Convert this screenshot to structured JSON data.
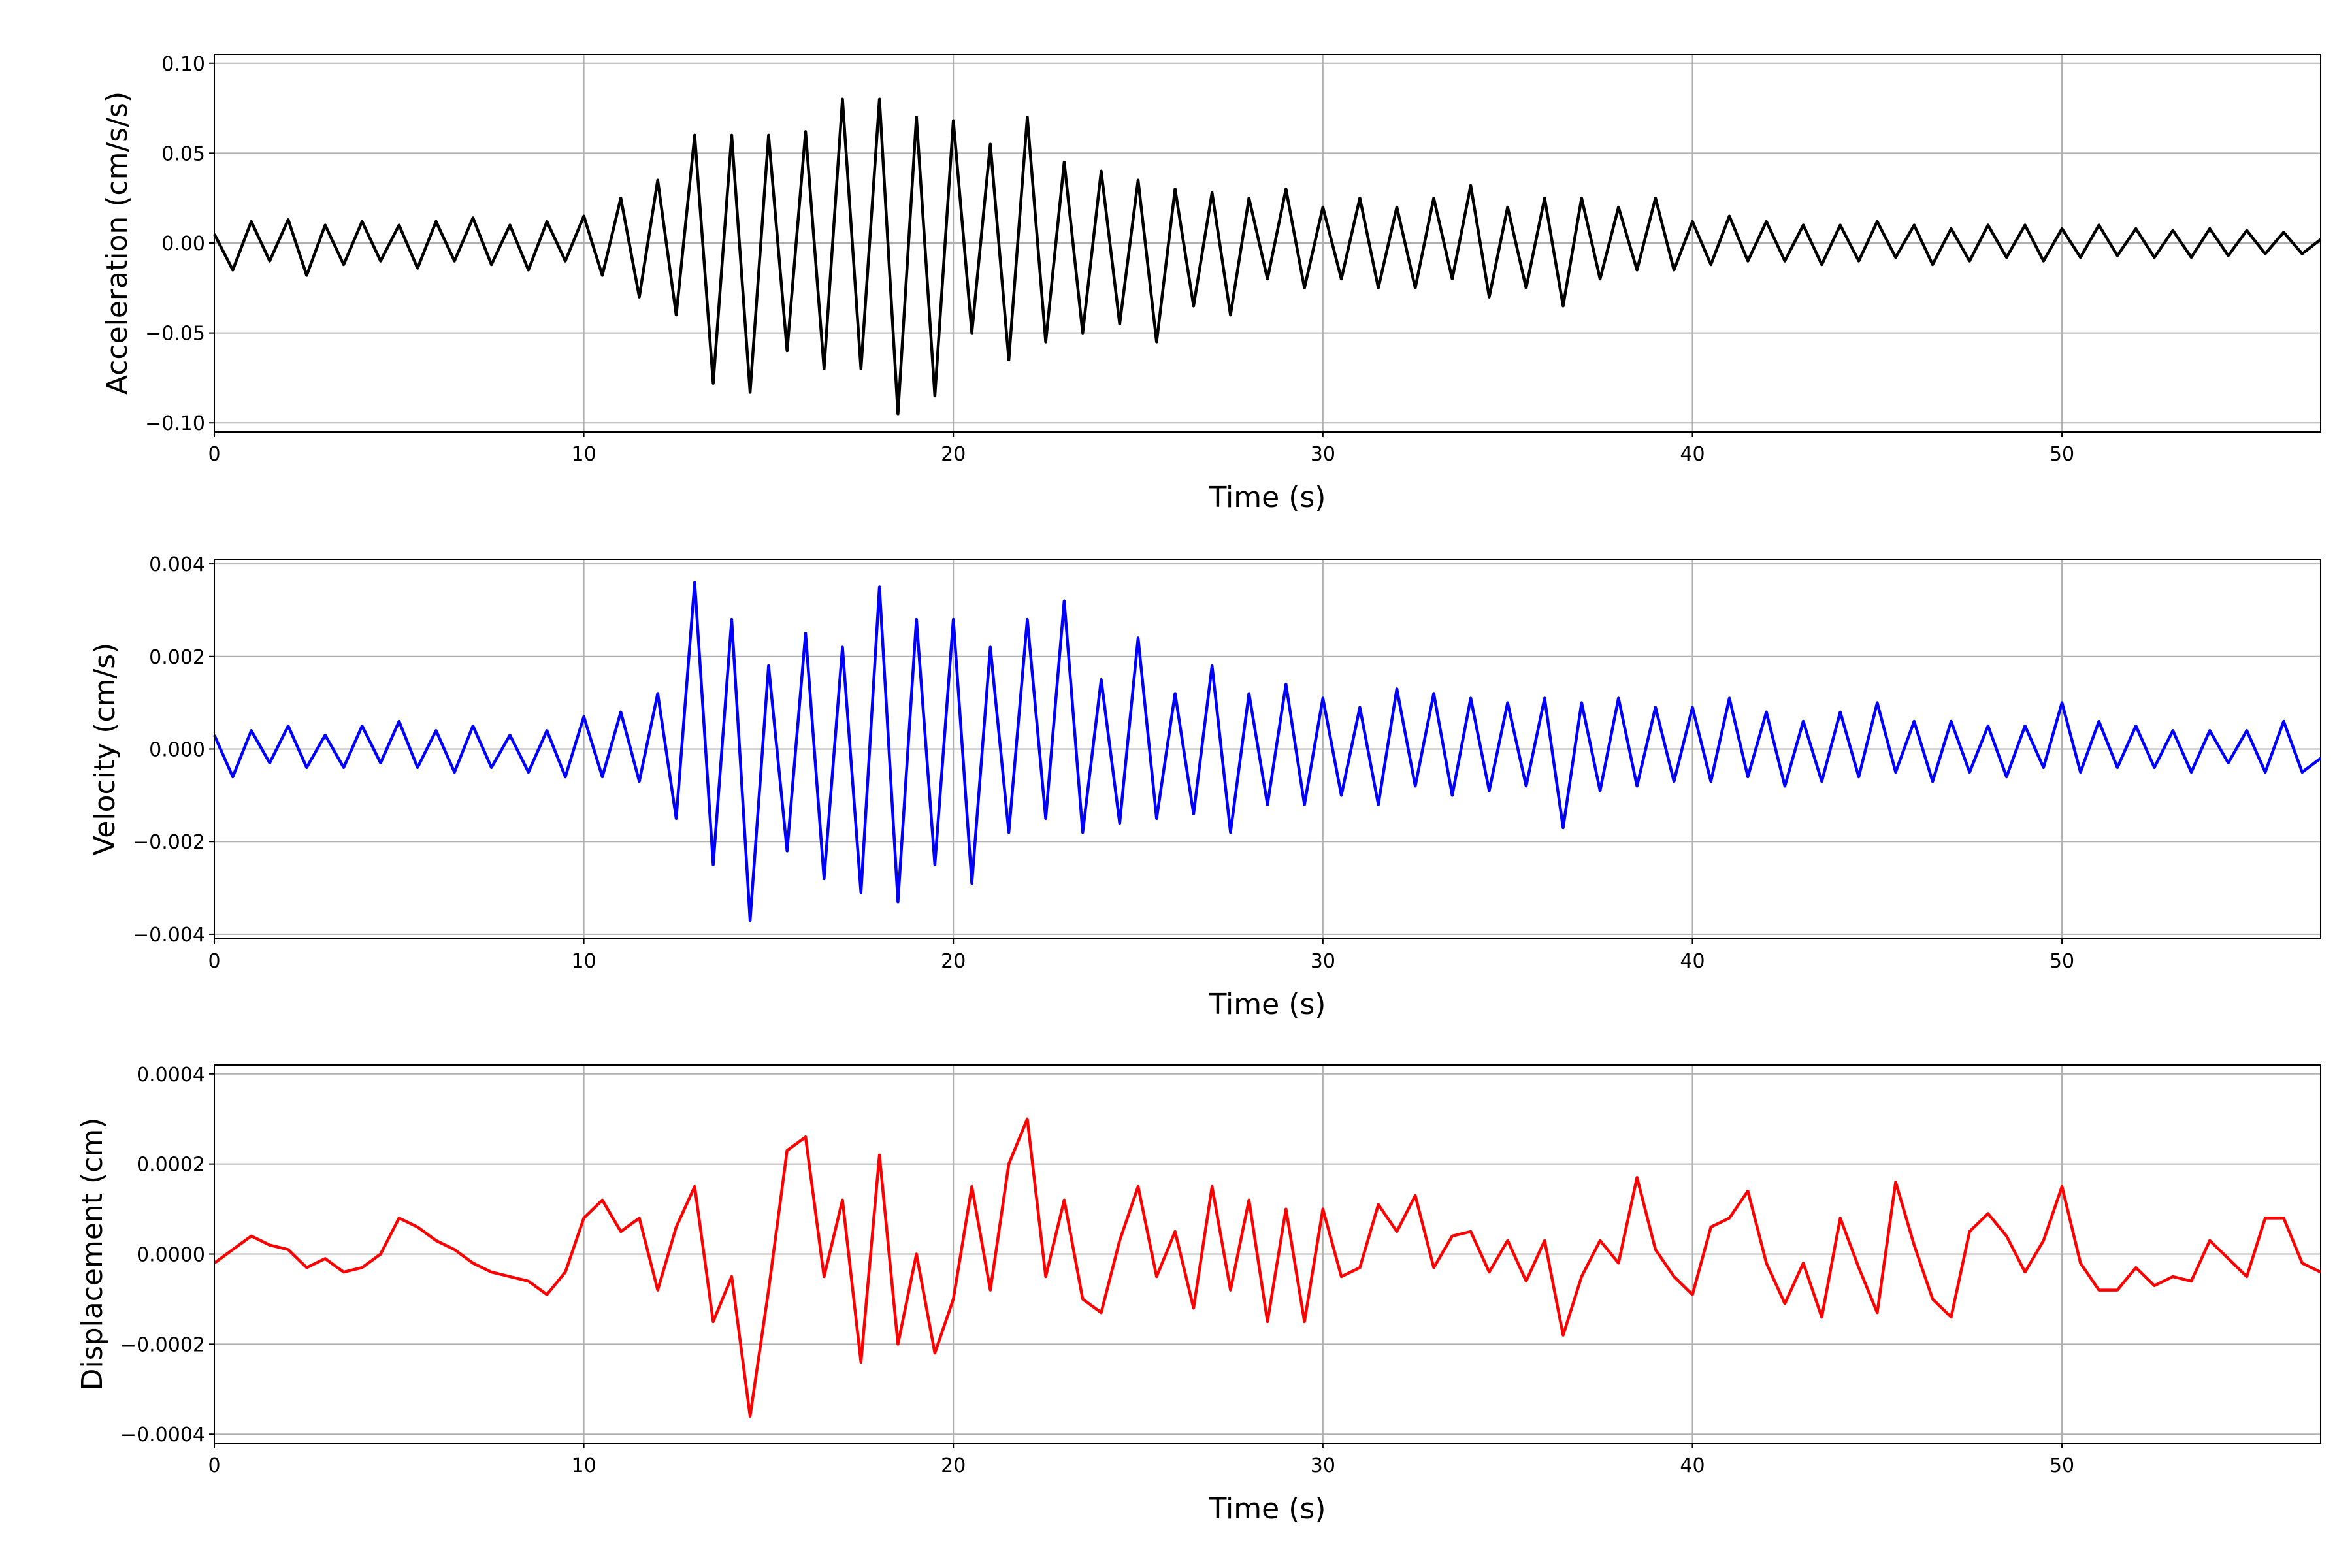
{
  "chart_data": [
    {
      "type": "line",
      "xlabel": "Time (s)",
      "ylabel": "Acceleration (cm/s/s)",
      "color": "#000000",
      "grid": true,
      "xlim": [
        0,
        57
      ],
      "xticks": [
        0,
        10,
        20,
        30,
        40,
        50
      ],
      "ylim": [
        -0.105,
        0.105
      ],
      "yticks": [
        {
          "value": -0.1,
          "label": "−0.10"
        },
        {
          "value": -0.05,
          "label": "−0.05"
        },
        {
          "value": 0,
          "label": "0.00"
        },
        {
          "value": 0.05,
          "label": "0.05"
        },
        {
          "value": 0.1,
          "label": "0.10"
        }
      ],
      "x": [
        0,
        0.5,
        1,
        1.5,
        2,
        2.5,
        3,
        3.5,
        4,
        4.5,
        5,
        5.5,
        6,
        6.5,
        7,
        7.5,
        8,
        8.5,
        9,
        9.5,
        10,
        10.5,
        11,
        11.5,
        12,
        12.5,
        13,
        13.5,
        14,
        14.5,
        15,
        15.5,
        16,
        16.5,
        17,
        17.5,
        18,
        18.5,
        19,
        19.5,
        20,
        20.5,
        21,
        21.5,
        22,
        22.5,
        23,
        23.5,
        24,
        24.5,
        25,
        25.5,
        26,
        26.5,
        27,
        27.5,
        28,
        28.5,
        29,
        29.5,
        30,
        30.5,
        31,
        31.5,
        32,
        32.5,
        33,
        33.5,
        34,
        34.5,
        35,
        35.5,
        36,
        36.5,
        37,
        37.5,
        38,
        38.5,
        39,
        39.5,
        40,
        40.5,
        41,
        41.5,
        42,
        42.5,
        43,
        43.5,
        44,
        44.5,
        45,
        45.5,
        46,
        46.5,
        47,
        47.5,
        48,
        48.5,
        49,
        49.5,
        50,
        50.5,
        51,
        51.5,
        52,
        52.5,
        53,
        53.5,
        54,
        54.5,
        55,
        55.5,
        56,
        56.5,
        57
      ],
      "values": [
        0.005,
        -0.015,
        0.012,
        -0.01,
        0.013,
        -0.018,
        0.01,
        -0.012,
        0.012,
        -0.01,
        0.01,
        -0.014,
        0.012,
        -0.01,
        0.014,
        -0.012,
        0.01,
        -0.015,
        0.012,
        -0.01,
        0.015,
        -0.018,
        0.025,
        -0.03,
        0.035,
        -0.04,
        0.06,
        -0.078,
        0.06,
        -0.083,
        0.06,
        -0.06,
        0.062,
        -0.07,
        0.08,
        -0.07,
        0.08,
        -0.095,
        0.07,
        -0.085,
        0.068,
        -0.05,
        0.055,
        -0.065,
        0.07,
        -0.055,
        0.045,
        -0.05,
        0.04,
        -0.045,
        0.035,
        -0.055,
        0.03,
        -0.035,
        0.028,
        -0.04,
        0.025,
        -0.02,
        0.03,
        -0.025,
        0.02,
        -0.02,
        0.025,
        -0.025,
        0.02,
        -0.025,
        0.025,
        -0.02,
        0.032,
        -0.03,
        0.02,
        -0.025,
        0.025,
        -0.035,
        0.025,
        -0.02,
        0.02,
        -0.015,
        0.025,
        -0.015,
        0.012,
        -0.012,
        0.015,
        -0.01,
        0.012,
        -0.01,
        0.01,
        -0.012,
        0.01,
        -0.01,
        0.012,
        -0.008,
        0.01,
        -0.012,
        0.008,
        -0.01,
        0.01,
        -0.008,
        0.01,
        -0.01,
        0.008,
        -0.008,
        0.01,
        -0.007,
        0.008,
        -0.008,
        0.007,
        -0.008,
        0.008,
        -0.007,
        0.007,
        -0.006,
        0.006,
        -0.006,
        0.002
      ]
    },
    {
      "type": "line",
      "xlabel": "Time (s)",
      "ylabel": "Velocity (cm/s)",
      "color": "#0000ff",
      "grid": true,
      "xlim": [
        0,
        57
      ],
      "xticks": [
        0,
        10,
        20,
        30,
        40,
        50
      ],
      "ylim": [
        -0.0041,
        0.0041
      ],
      "yticks": [
        {
          "value": -0.004,
          "label": "−0.004"
        },
        {
          "value": -0.002,
          "label": "−0.002"
        },
        {
          "value": 0,
          "label": "0.000"
        },
        {
          "value": 0.002,
          "label": "0.002"
        },
        {
          "value": 0.004,
          "label": "0.004"
        }
      ],
      "x": [
        0,
        0.5,
        1,
        1.5,
        2,
        2.5,
        3,
        3.5,
        4,
        4.5,
        5,
        5.5,
        6,
        6.5,
        7,
        7.5,
        8,
        8.5,
        9,
        9.5,
        10,
        10.5,
        11,
        11.5,
        12,
        12.5,
        13,
        13.5,
        14,
        14.5,
        15,
        15.5,
        16,
        16.5,
        17,
        17.5,
        18,
        18.5,
        19,
        19.5,
        20,
        20.5,
        21,
        21.5,
        22,
        22.5,
        23,
        23.5,
        24,
        24.5,
        25,
        25.5,
        26,
        26.5,
        27,
        27.5,
        28,
        28.5,
        29,
        29.5,
        30,
        30.5,
        31,
        31.5,
        32,
        32.5,
        33,
        33.5,
        34,
        34.5,
        35,
        35.5,
        36,
        36.5,
        37,
        37.5,
        38,
        38.5,
        39,
        39.5,
        40,
        40.5,
        41,
        41.5,
        42,
        42.5,
        43,
        43.5,
        44,
        44.5,
        45,
        45.5,
        46,
        46.5,
        47,
        47.5,
        48,
        48.5,
        49,
        49.5,
        50,
        50.5,
        51,
        51.5,
        52,
        52.5,
        53,
        53.5,
        54,
        54.5,
        55,
        55.5,
        56,
        56.5,
        57
      ],
      "values": [
        0.0003,
        -0.0006,
        0.0004,
        -0.0003,
        0.0005,
        -0.0004,
        0.0003,
        -0.0004,
        0.0005,
        -0.0003,
        0.0006,
        -0.0004,
        0.0004,
        -0.0005,
        0.0005,
        -0.0004,
        0.0003,
        -0.0005,
        0.0004,
        -0.0006,
        0.0007,
        -0.0006,
        0.0008,
        -0.0007,
        0.0012,
        -0.0015,
        0.0036,
        -0.0025,
        0.0028,
        -0.0037,
        0.0018,
        -0.0022,
        0.0025,
        -0.0028,
        0.0022,
        -0.0031,
        0.0035,
        -0.0033,
        0.0028,
        -0.0025,
        0.0028,
        -0.0029,
        0.0022,
        -0.0018,
        0.0028,
        -0.0015,
        0.0032,
        -0.0018,
        0.0015,
        -0.0016,
        0.0024,
        -0.0015,
        0.0012,
        -0.0014,
        0.0018,
        -0.0018,
        0.0012,
        -0.0012,
        0.0014,
        -0.0012,
        0.0011,
        -0.001,
        0.0009,
        -0.0012,
        0.0013,
        -0.0008,
        0.0012,
        -0.001,
        0.0011,
        -0.0009,
        0.001,
        -0.0008,
        0.0011,
        -0.0017,
        0.001,
        -0.0009,
        0.0011,
        -0.0008,
        0.0009,
        -0.0007,
        0.0009,
        -0.0007,
        0.0011,
        -0.0006,
        0.0008,
        -0.0008,
        0.0006,
        -0.0007,
        0.0008,
        -0.0006,
        0.001,
        -0.0005,
        0.0006,
        -0.0007,
        0.0006,
        -0.0005,
        0.0005,
        -0.0006,
        0.0005,
        -0.0004,
        0.001,
        -0.0005,
        0.0006,
        -0.0004,
        0.0005,
        -0.0004,
        0.0004,
        -0.0005,
        0.0004,
        -0.0003,
        0.0004,
        -0.0005,
        0.0006,
        -0.0005,
        -0.0002
      ]
    },
    {
      "type": "line",
      "xlabel": "Time (s)",
      "ylabel": "Displacement (cm)",
      "color": "#ff0000",
      "grid": true,
      "xlim": [
        0,
        57
      ],
      "xticks": [
        0,
        10,
        20,
        30,
        40,
        50
      ],
      "ylim": [
        -0.00042,
        0.00042
      ],
      "yticks": [
        {
          "value": -0.0004,
          "label": "−0.0004"
        },
        {
          "value": -0.0002,
          "label": "−0.0002"
        },
        {
          "value": 0,
          "label": "0.0000"
        },
        {
          "value": 0.0002,
          "label": "0.0002"
        },
        {
          "value": 0.0004,
          "label": "0.0004"
        }
      ],
      "x": [
        0,
        0.5,
        1,
        1.5,
        2,
        2.5,
        3,
        3.5,
        4,
        4.5,
        5,
        5.5,
        6,
        6.5,
        7,
        7.5,
        8,
        8.5,
        9,
        9.5,
        10,
        10.5,
        11,
        11.5,
        12,
        12.5,
        13,
        13.5,
        14,
        14.5,
        15,
        15.5,
        16,
        16.5,
        17,
        17.5,
        18,
        18.5,
        19,
        19.5,
        20,
        20.5,
        21,
        21.5,
        22,
        22.5,
        23,
        23.5,
        24,
        24.5,
        25,
        25.5,
        26,
        26.5,
        27,
        27.5,
        28,
        28.5,
        29,
        29.5,
        30,
        30.5,
        31,
        31.5,
        32,
        32.5,
        33,
        33.5,
        34,
        34.5,
        35,
        35.5,
        36,
        36.5,
        37,
        37.5,
        38,
        38.5,
        39,
        39.5,
        40,
        40.5,
        41,
        41.5,
        42,
        42.5,
        43,
        43.5,
        44,
        44.5,
        45,
        45.5,
        46,
        46.5,
        47,
        47.5,
        48,
        48.5,
        49,
        49.5,
        50,
        50.5,
        51,
        51.5,
        52,
        52.5,
        53,
        53.5,
        54,
        54.5,
        55,
        55.5,
        56,
        56.5,
        57
      ],
      "values": [
        -2e-05,
        1e-05,
        4e-05,
        2e-05,
        1e-05,
        -3e-05,
        -1e-05,
        -4e-05,
        -3e-05,
        0.0,
        8e-05,
        6e-05,
        3e-05,
        1e-05,
        -2e-05,
        -4e-05,
        -5e-05,
        -6e-05,
        -9e-05,
        -4e-05,
        8e-05,
        0.00012,
        5e-05,
        8e-05,
        -8e-05,
        6e-05,
        0.00015,
        -0.00015,
        -5e-05,
        -0.00036,
        -8e-05,
        0.00023,
        0.00026,
        -5e-05,
        0.00012,
        -0.00024,
        0.00022,
        -0.0002,
        0.0,
        -0.00022,
        -0.0001,
        0.00015,
        -8e-05,
        0.0002,
        0.0003,
        -5e-05,
        0.00012,
        -0.0001,
        -0.00013,
        3e-05,
        0.00015,
        -5e-05,
        5e-05,
        -0.00012,
        0.00015,
        -8e-05,
        0.00012,
        -0.00015,
        0.0001,
        -0.00015,
        0.0001,
        -5e-05,
        -3e-05,
        0.00011,
        5e-05,
        0.00013,
        -3e-05,
        4e-05,
        5e-05,
        -4e-05,
        3e-05,
        -6e-05,
        3e-05,
        -0.00018,
        -5e-05,
        3e-05,
        -2e-05,
        0.00017,
        1e-05,
        -5e-05,
        -9e-05,
        6e-05,
        8e-05,
        0.00014,
        -2e-05,
        -0.00011,
        -2e-05,
        -0.00014,
        8e-05,
        -3e-05,
        -0.00013,
        0.00016,
        2e-05,
        -0.0001,
        -0.00014,
        5e-05,
        9e-05,
        4e-05,
        -4e-05,
        3e-05,
        0.00015,
        -2e-05,
        -8e-05,
        -8e-05,
        -3e-05,
        -7e-05,
        -5e-05,
        -6e-05,
        3e-05,
        -1e-05,
        -5e-05,
        8e-05,
        8e-05,
        -2e-05,
        -4e-05
      ]
    }
  ]
}
